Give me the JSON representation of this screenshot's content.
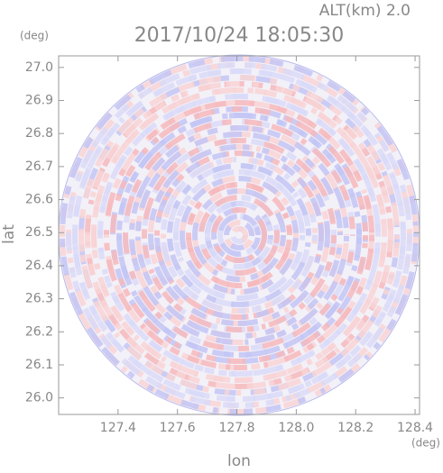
{
  "chart_data": {
    "type": "radar-ppi",
    "title": "2017/10/24 18:05:30",
    "subtitle": "ALT(km) 2.0",
    "x_label": "lon",
    "x_unit": "(deg)",
    "y_label": "lat",
    "y_unit": "(deg)",
    "xlim": [
      127.2,
      128.415
    ],
    "ylim": [
      25.95,
      27.035
    ],
    "xticks": [
      127.4,
      127.6,
      127.8,
      {
        "value": 128,
        "label": "128.0"
      },
      128.2,
      128.4
    ],
    "yticks": [
      {
        "value": 26,
        "label": "26.0"
      },
      26.1,
      26.2,
      26.3,
      26.4,
      26.5,
      26.6,
      26.7,
      26.8,
      26.9,
      {
        "value": 27,
        "label": "27.0"
      }
    ]
  }
}
